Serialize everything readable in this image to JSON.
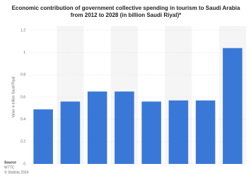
{
  "chart_data": {
    "type": "bar",
    "title": "Economic contribution of government collective spending in tourism to Saudi Arabia from 2012 to 2028 (in billion Saudi Riyal)*",
    "y_label": "Value in billion Saudi Riyal",
    "categories": [
      null,
      null,
      null,
      null,
      null,
      null,
      null,
      null
    ],
    "values": [
      0.49,
      0.56,
      0.65,
      0.65,
      0.56,
      0.57,
      0.57,
      1.04
    ],
    "color": "#3a78d8",
    "ylim": [
      0,
      1.2
    ],
    "yticks": [
      0,
      0.2,
      0.4,
      0.6,
      0.8,
      1,
      1.2
    ],
    "grid": true,
    "source_label": "Source",
    "source": "WTTC",
    "copyright": "© Statista 2024"
  }
}
